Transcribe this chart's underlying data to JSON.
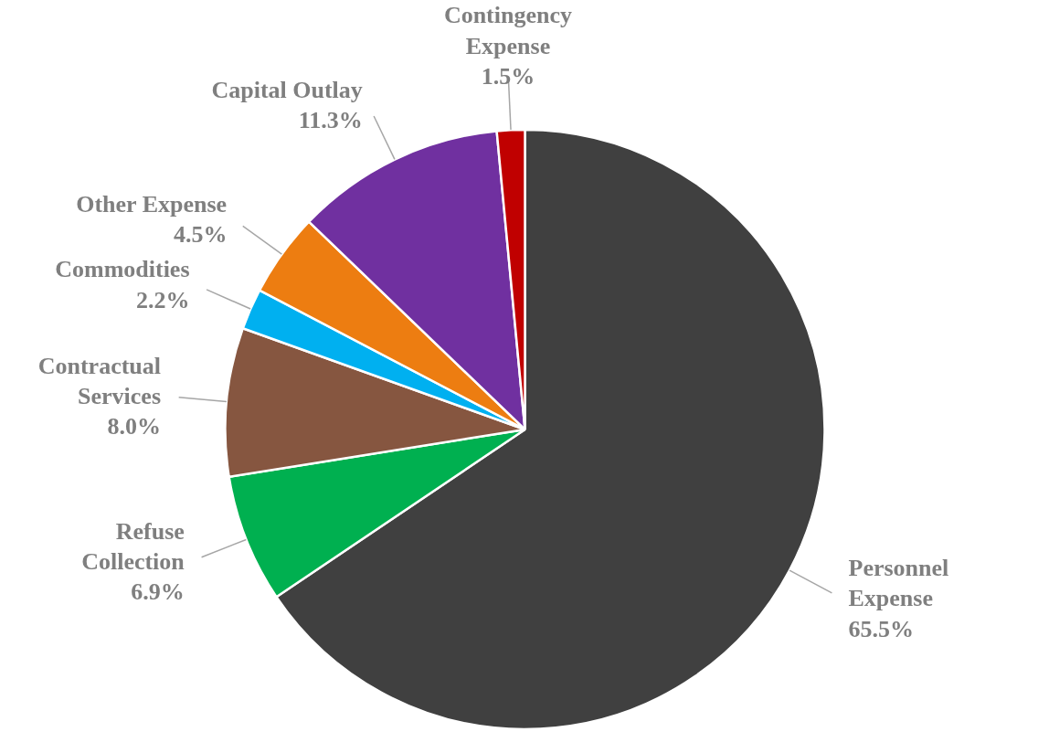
{
  "chart_data": {
    "type": "pie",
    "categories": [
      "Personnel\nExpense",
      "Refuse\nCollection",
      "Contractual\nServices",
      "Commodities",
      "Other Expense",
      "Capital Outlay",
      "Contingency\nExpense"
    ],
    "values": [
      65.5,
      6.9,
      8.0,
      2.2,
      4.5,
      11.3,
      1.5
    ],
    "colors": [
      "#404040",
      "#00b050",
      "#865640",
      "#00b0f0",
      "#ed7d11",
      "#7030a0",
      "#c00000"
    ],
    "value_labels": [
      "65.5%",
      "6.9%",
      "8.0%",
      "2.2%",
      "4.5%",
      "11.3%",
      "1.5%"
    ],
    "legend": false
  }
}
